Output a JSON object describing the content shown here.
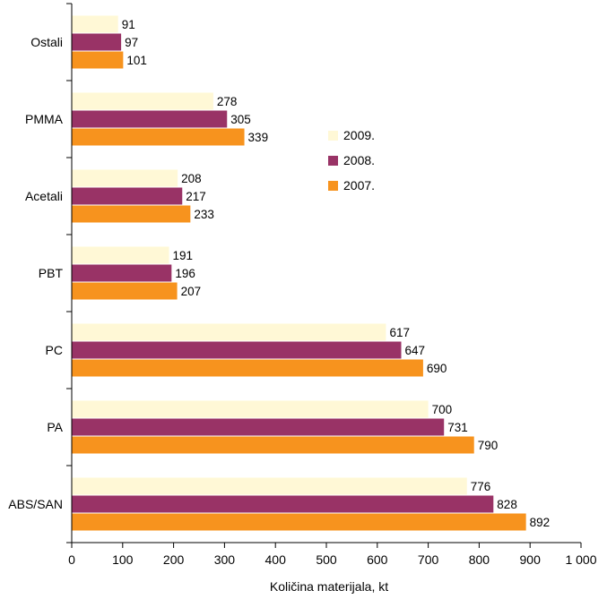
{
  "chart_data": {
    "type": "bar",
    "orientation": "horizontal",
    "categories": [
      "Ostali",
      "PMMA",
      "Acetali",
      "PBT",
      "PC",
      "PA",
      "ABS/SAN"
    ],
    "series": [
      {
        "name": "2009.",
        "color": "#FFF8D6",
        "values": [
          91,
          278,
          208,
          191,
          617,
          700,
          776
        ]
      },
      {
        "name": "2008.",
        "color": "#993366",
        "values": [
          97,
          305,
          217,
          196,
          647,
          731,
          828
        ]
      },
      {
        "name": "2007.",
        "color": "#F7931E",
        "values": [
          101,
          339,
          233,
          207,
          690,
          790,
          892
        ]
      }
    ],
    "xlabel": "Količina materijala, kt",
    "xlim": [
      0,
      1000
    ],
    "xticks": [
      0,
      100,
      200,
      300,
      400,
      500,
      600,
      700,
      800,
      900,
      1000
    ],
    "xtick_labels": [
      "0",
      "100",
      "200",
      "300",
      "400",
      "500",
      "600",
      "700",
      "800",
      "900",
      "1 000"
    ],
    "grid": false,
    "legend_position": "right-center"
  }
}
